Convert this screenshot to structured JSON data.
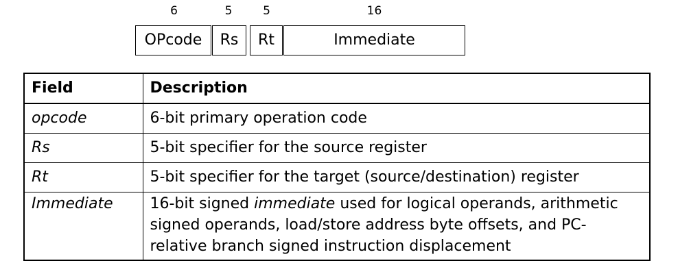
{
  "format": {
    "bit_widths": [
      "6",
      "5",
      "5",
      "16"
    ],
    "fields": [
      "OPcode",
      "Rs",
      "Rt",
      "Immediate"
    ]
  },
  "table": {
    "headers": {
      "field": "Field",
      "description": "Description"
    },
    "rows": [
      {
        "field": "opcode",
        "description": "6-bit primary operation code"
      },
      {
        "field": "Rs",
        "description": "5-bit specifier for the source register"
      },
      {
        "field": "Rt",
        "description": "5-bit specifier for the target (source/destination) register"
      },
      {
        "field": "Immediate",
        "description_prefix": "16-bit signed ",
        "description_emphasis": "immediate",
        "description_suffix": " used for logical operands, arithmetic signed operands, load/store address byte offsets, and PC-relative branch signed instruction displacement"
      }
    ]
  }
}
